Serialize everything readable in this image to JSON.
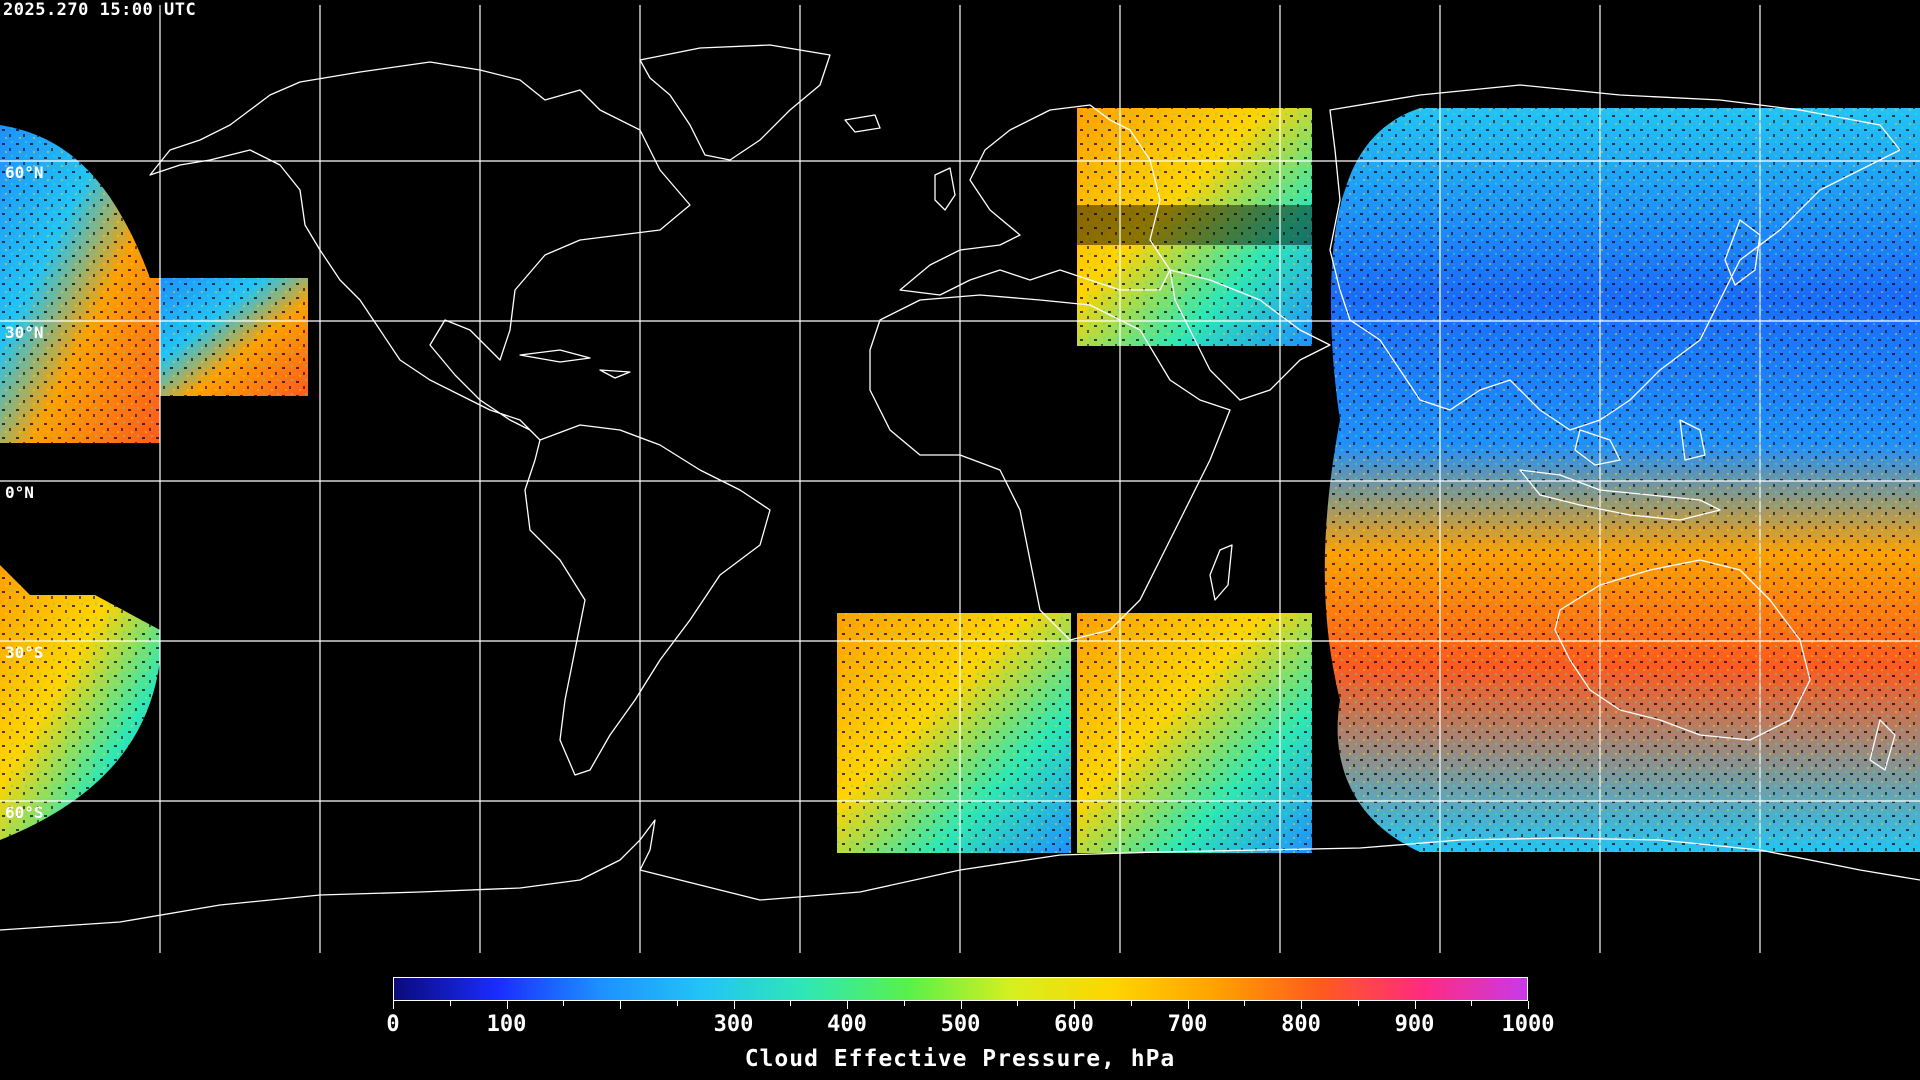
{
  "timestamp": "2025.270 15:00 UTC",
  "latitude_labels": [
    "60°N",
    "30°N",
    "0°N",
    "30°S",
    "60°S"
  ],
  "colorbar": {
    "title": "Cloud Effective Pressure, hPa",
    "tick_labels": [
      "0",
      "100",
      "300",
      "400",
      "500",
      "600",
      "700",
      "800",
      "900",
      "1000"
    ],
    "tick_values": [
      0,
      100,
      300,
      400,
      500,
      600,
      700,
      800,
      900,
      1000
    ],
    "range": [
      0,
      1000
    ],
    "colors": [
      "#0a0a7a",
      "#1a2cff",
      "#1e90ff",
      "#22c4f5",
      "#2ee8b4",
      "#5af04a",
      "#d6f01e",
      "#ffd400",
      "#ffa000",
      "#ff5a1e",
      "#ff2a80",
      "#c83ae8"
    ]
  },
  "map": {
    "background": "#000000",
    "coastline_color": "#ffffff",
    "grid_color": "#ffffff"
  }
}
